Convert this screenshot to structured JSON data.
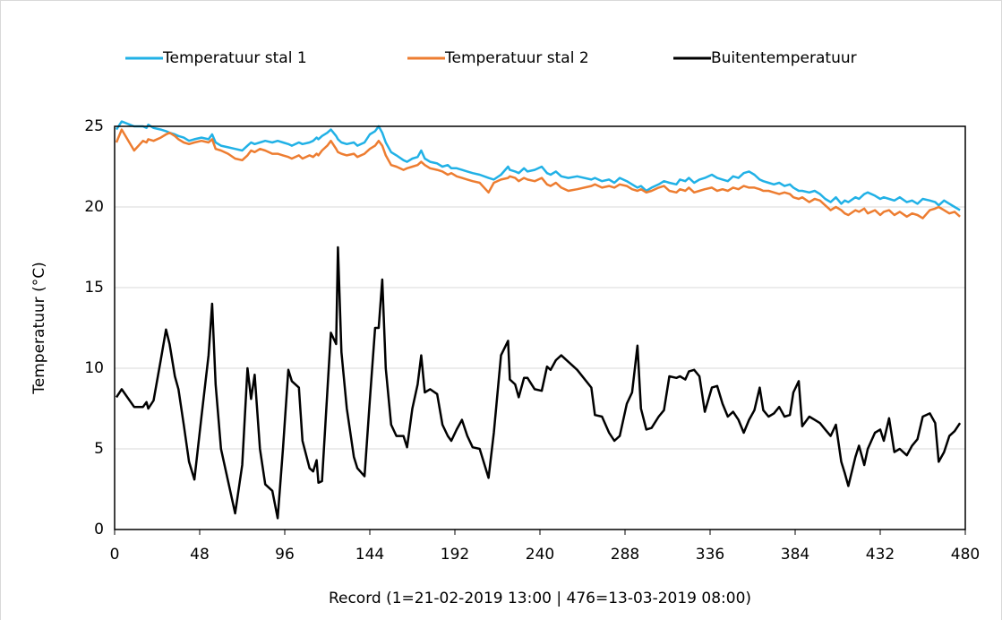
{
  "chart_data": {
    "type": "line",
    "x_label": "Record (1=21-02-2019 13:00 | 476=13-03-2019 08:00)",
    "y_label": "Temperatuur (°C)",
    "legend": "top",
    "grid": true,
    "xlim": [
      0,
      480
    ],
    "xticks": [
      0,
      48,
      96,
      144,
      192,
      240,
      288,
      336,
      384,
      432,
      480
    ],
    "ylim": [
      0,
      25
    ],
    "yticks": [
      0,
      5,
      10,
      15,
      20,
      25
    ],
    "x": [
      1,
      4,
      11,
      16,
      18,
      19,
      22,
      26,
      29,
      31,
      34,
      36,
      39,
      42,
      45,
      49,
      53,
      55,
      57,
      60,
      64,
      68,
      72,
      75,
      77,
      79,
      82,
      85,
      89,
      92,
      95,
      98,
      100,
      104,
      106,
      110,
      112,
      114,
      115,
      117,
      120,
      122,
      125,
      126,
      128,
      131,
      135,
      137,
      141,
      144,
      147,
      149,
      151,
      153,
      156,
      159,
      163,
      165,
      168,
      171,
      173,
      175,
      178,
      182,
      185,
      188,
      190,
      193,
      196,
      199,
      202,
      206,
      211,
      214,
      218,
      222,
      223,
      226,
      228,
      231,
      233,
      237,
      241,
      244,
      246,
      249,
      252,
      256,
      261,
      269,
      271,
      275,
      279,
      282,
      285,
      289,
      292,
      295,
      297,
      300,
      303,
      307,
      310,
      313,
      317,
      319,
      322,
      324,
      327,
      330,
      333,
      337,
      340,
      343,
      346,
      349,
      352,
      355,
      358,
      361,
      364,
      366,
      369,
      372,
      375,
      378,
      381,
      383,
      386,
      388,
      392,
      395,
      398,
      401,
      404,
      407,
      410,
      412,
      414,
      418,
      420,
      423,
      425,
      429,
      432,
      434,
      437,
      440,
      443,
      447,
      450,
      453,
      456,
      460,
      463,
      465,
      468,
      471,
      474,
      477
    ],
    "series": [
      {
        "name": "Temperatuur stal 1",
        "color": "#21b1e6",
        "values": [
          24.8,
          25.3,
          25.0,
          25.0,
          24.9,
          25.1,
          24.9,
          24.8,
          24.7,
          24.6,
          24.5,
          24.4,
          24.3,
          24.1,
          24.2,
          24.3,
          24.2,
          24.5,
          24.0,
          23.8,
          23.7,
          23.6,
          23.5,
          23.8,
          24.0,
          23.9,
          24.0,
          24.1,
          24.0,
          24.1,
          24.0,
          23.9,
          23.8,
          24.0,
          23.9,
          24.0,
          24.1,
          24.3,
          24.2,
          24.4,
          24.6,
          24.8,
          24.4,
          24.2,
          24.0,
          23.9,
          24.0,
          23.8,
          24.0,
          24.5,
          24.7,
          25.0,
          24.6,
          24.0,
          23.4,
          23.2,
          22.9,
          22.8,
          23.0,
          23.1,
          23.5,
          23.0,
          22.8,
          22.7,
          22.5,
          22.6,
          22.4,
          22.4,
          22.3,
          22.2,
          22.1,
          22.0,
          21.8,
          21.7,
          22.0,
          22.5,
          22.3,
          22.2,
          22.1,
          22.4,
          22.2,
          22.3,
          22.5,
          22.1,
          22.0,
          22.2,
          21.9,
          21.8,
          21.9,
          21.7,
          21.8,
          21.6,
          21.7,
          21.5,
          21.8,
          21.6,
          21.4,
          21.2,
          21.3,
          21.0,
          21.2,
          21.4,
          21.6,
          21.5,
          21.4,
          21.7,
          21.6,
          21.8,
          21.5,
          21.7,
          21.8,
          22.0,
          21.8,
          21.7,
          21.6,
          21.9,
          21.8,
          22.1,
          22.2,
          22.0,
          21.7,
          21.6,
          21.5,
          21.4,
          21.5,
          21.3,
          21.4,
          21.2,
          21.0,
          21.0,
          20.9,
          21.0,
          20.8,
          20.5,
          20.3,
          20.6,
          20.2,
          20.4,
          20.3,
          20.6,
          20.5,
          20.8,
          20.9,
          20.7,
          20.5,
          20.6,
          20.5,
          20.4,
          20.6,
          20.3,
          20.4,
          20.2,
          20.5,
          20.4,
          20.3,
          20.1,
          20.4,
          20.2,
          20.0,
          19.8
        ]
      },
      {
        "name": "Temperatuur stal 2",
        "color": "#ed7d31",
        "values": [
          24.0,
          24.8,
          23.5,
          24.1,
          24.0,
          24.2,
          24.1,
          24.3,
          24.5,
          24.6,
          24.4,
          24.2,
          24.0,
          23.9,
          24.0,
          24.1,
          24.0,
          24.2,
          23.6,
          23.5,
          23.3,
          23.0,
          22.9,
          23.2,
          23.5,
          23.4,
          23.6,
          23.5,
          23.3,
          23.3,
          23.2,
          23.1,
          23.0,
          23.2,
          23.0,
          23.2,
          23.1,
          23.3,
          23.2,
          23.5,
          23.8,
          24.1,
          23.6,
          23.4,
          23.3,
          23.2,
          23.3,
          23.1,
          23.3,
          23.6,
          23.8,
          24.1,
          23.8,
          23.2,
          22.6,
          22.5,
          22.3,
          22.4,
          22.5,
          22.6,
          22.8,
          22.6,
          22.4,
          22.3,
          22.2,
          22.0,
          22.1,
          21.9,
          21.8,
          21.7,
          21.6,
          21.5,
          20.9,
          21.5,
          21.7,
          21.8,
          21.9,
          21.8,
          21.6,
          21.8,
          21.7,
          21.6,
          21.8,
          21.4,
          21.3,
          21.5,
          21.2,
          21.0,
          21.1,
          21.3,
          21.4,
          21.2,
          21.3,
          21.2,
          21.4,
          21.3,
          21.1,
          21.0,
          21.1,
          20.9,
          21.0,
          21.2,
          21.3,
          21.0,
          20.9,
          21.1,
          21.0,
          21.2,
          20.9,
          21.0,
          21.1,
          21.2,
          21.0,
          21.1,
          21.0,
          21.2,
          21.1,
          21.3,
          21.2,
          21.2,
          21.1,
          21.0,
          21.0,
          20.9,
          20.8,
          20.9,
          20.8,
          20.6,
          20.5,
          20.6,
          20.3,
          20.5,
          20.4,
          20.1,
          19.8,
          20.0,
          19.8,
          19.6,
          19.5,
          19.8,
          19.7,
          19.9,
          19.6,
          19.8,
          19.5,
          19.7,
          19.8,
          19.5,
          19.7,
          19.4,
          19.6,
          19.5,
          19.3,
          19.8,
          19.9,
          20.0,
          19.8,
          19.6,
          19.7,
          19.4
        ]
      },
      {
        "name": "Buitentemperatuur",
        "color": "#000000",
        "values": [
          8.2,
          8.7,
          7.6,
          7.6,
          7.9,
          7.5,
          8.0,
          10.5,
          12.4,
          11.5,
          9.5,
          8.7,
          6.5,
          4.2,
          3.1,
          7.0,
          10.8,
          14.0,
          9.0,
          5.0,
          3.0,
          1.0,
          4.0,
          10.0,
          8.1,
          9.6,
          5.0,
          2.8,
          2.4,
          0.7,
          5.0,
          9.9,
          9.2,
          8.8,
          5.5,
          3.8,
          3.6,
          4.3,
          2.9,
          3.0,
          8.5,
          12.2,
          11.5,
          17.5,
          11.0,
          7.5,
          4.5,
          3.8,
          3.3,
          8.0,
          12.5,
          12.5,
          15.5,
          10.0,
          6.5,
          5.8,
          5.8,
          5.1,
          7.5,
          9.0,
          10.8,
          8.5,
          8.7,
          8.4,
          6.5,
          5.8,
          5.5,
          6.2,
          6.8,
          5.8,
          5.1,
          5.0,
          3.2,
          6.0,
          10.8,
          11.7,
          9.3,
          9.0,
          8.2,
          9.4,
          9.4,
          8.7,
          8.6,
          10.1,
          9.9,
          10.5,
          10.8,
          10.4,
          9.9,
          8.8,
          7.1,
          7.0,
          6.0,
          5.5,
          5.8,
          7.8,
          8.5,
          11.4,
          7.5,
          6.2,
          6.3,
          7.0,
          7.4,
          9.5,
          9.4,
          9.5,
          9.3,
          9.8,
          9.9,
          9.5,
          7.3,
          8.8,
          8.9,
          7.8,
          7.0,
          7.3,
          6.8,
          6.0,
          6.8,
          7.4,
          8.8,
          7.4,
          7.0,
          7.2,
          7.6,
          7.0,
          7.1,
          8.5,
          9.2,
          6.4,
          7.0,
          6.8,
          6.6,
          6.2,
          5.8,
          6.5,
          4.2,
          3.5,
          2.7,
          4.5,
          5.2,
          4.0,
          5.0,
          6.0,
          6.2,
          5.5,
          6.9,
          4.8,
          5.0,
          4.6,
          5.2,
          5.6,
          7.0,
          7.2,
          6.6,
          4.2,
          4.8,
          5.8,
          6.1,
          6.6
        ]
      }
    ]
  }
}
